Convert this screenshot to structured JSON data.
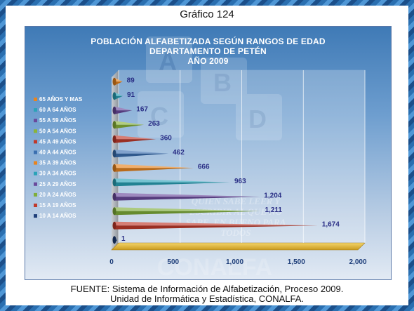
{
  "page_title": "Gráfico 124",
  "chart_title_lines": [
    "POBLACIÓN ALFABETIZADA SEGÚN RANGOS DE EDAD",
    "DEPARTAMENTO DE PETÉN",
    "AÑO 2009"
  ],
  "watermark_text": {
    "letters": [
      "A",
      "B",
      "C",
      "D"
    ],
    "slogan_lines": [
      "QUIEN SABE LEER Y",
      "ESCRIBIR AL QUE NO",
      "SABE, EN BUENO PARA",
      "TODOS"
    ],
    "brand": "CONALFA"
  },
  "source_lines": [
    "FUENTE: Sistema de Información de Alfabetización, Proceso 2009.",
    "Unidad de Informática y Estadística, CONALFA."
  ],
  "chart_data": {
    "type": "bar",
    "orientation": "horizontal",
    "title": "POBLACIÓN ALFABETIZADA SEGÚN RANGOS DE EDAD DEPARTAMENTO DE PETÉN AÑO 2009",
    "categories": [
      "10 A 14 AÑOS",
      "15 A 19 AÑOS",
      "20 A 24 AÑOS",
      "25 A 29 AÑOS",
      "30 A 34 AÑOS",
      "35 A 39 AÑOS",
      "40 A 44 AÑOS",
      "45 A 49 AÑOS",
      "50 A 54 AÑOS",
      "55 A 59 AÑOS",
      "60 A 64 AÑOS",
      "65 AÑOS Y MAS"
    ],
    "values": [
      1,
      1674,
      1211,
      1204,
      963,
      666,
      462,
      360,
      263,
      167,
      91,
      89
    ],
    "value_labels": [
      "1",
      "1,674",
      "1,211",
      "1,204",
      "963",
      "666",
      "462",
      "360",
      "263",
      "167",
      "91",
      "89"
    ],
    "colors": [
      "#1f3f7a",
      "#c0392b",
      "#7fae3a",
      "#6a4a9c",
      "#2ba3b8",
      "#e8841f",
      "#3b6fb0",
      "#c0392b",
      "#8ab43a",
      "#6a4a9c",
      "#2ba3b8",
      "#e8841f"
    ],
    "legend_order": [
      "65 AÑOS Y MAS",
      "60 A 64 AÑOS",
      "55 A 59 AÑOS",
      "50 A 54 AÑOS",
      "45 A 49 AÑOS",
      "40 A 44 AÑOS",
      "35 A 39 AÑOS",
      "30 A 34 AÑOS",
      "25 A 29 AÑOS",
      "20 A 24 AÑOS",
      "15 A 19 AÑOS",
      "10 A 14 AÑOS"
    ],
    "x_ticks": [
      "0",
      "500",
      "1,000",
      "1,500",
      "2,000"
    ],
    "x_tick_values": [
      0,
      500,
      1000,
      1500,
      2000
    ],
    "xlim": [
      0,
      2000
    ],
    "legend_position": "left",
    "grid": true,
    "bar_shape": "cone"
  }
}
